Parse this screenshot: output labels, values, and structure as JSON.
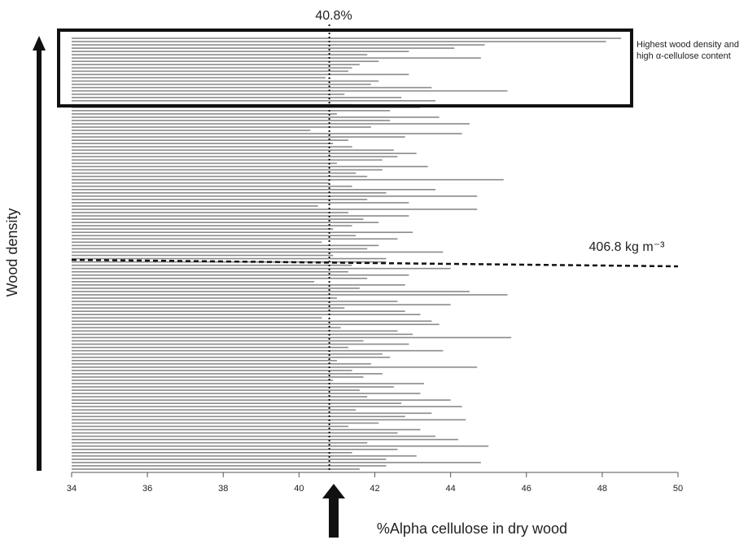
{
  "chart_data": {
    "type": "bar",
    "orientation": "horizontal",
    "y_label": "Wood density",
    "x_label": "%Alpha cellulose in dry wood",
    "color": "#8a8a8a",
    "xlim": [
      34,
      50
    ],
    "xticks": [
      34,
      36,
      38,
      40,
      42,
      44,
      46,
      48,
      50
    ],
    "mean_line": {
      "value": 40.8,
      "label": "40.8%"
    },
    "threshold_label": "406.8 kg m⁻³",
    "box_label": "Highest wood density and high α-cellulose content",
    "values": [
      48.5,
      48.1,
      44.9,
      44.1,
      42.9,
      41.8,
      44.8,
      42.1,
      41.6,
      41.4,
      41.3,
      42.9,
      40.7,
      42.1,
      41.9,
      43.5,
      45.5,
      41.2,
      42.7,
      43.6,
      41.4,
      43.2,
      42.4,
      41.0,
      43.7,
      42.4,
      44.5,
      41.9,
      40.3,
      44.3,
      42.8,
      41.3,
      40.9,
      41.4,
      42.5,
      43.1,
      42.6,
      42.2,
      41.0,
      43.4,
      42.2,
      41.5,
      41.8,
      45.4,
      40.8,
      41.4,
      43.6,
      42.3,
      44.7,
      41.8,
      42.9,
      40.5,
      44.7,
      41.3,
      42.9,
      41.7,
      42.1,
      41.4,
      40.9,
      43.0,
      41.5,
      42.6,
      40.6,
      42.1,
      41.8,
      43.8,
      40.9,
      42.3,
      42.3,
      41.4,
      44.0,
      41.3,
      42.9,
      41.8,
      40.4,
      42.8,
      41.6,
      44.5,
      45.5,
      41.0,
      42.6,
      44.0,
      41.2,
      42.8,
      43.2,
      40.6,
      43.5,
      43.7,
      41.1,
      42.6,
      43.0,
      45.6,
      41.7,
      42.9,
      41.3,
      43.8,
      42.2,
      42.4,
      41.0,
      41.9,
      44.7,
      41.4,
      42.2,
      41.7,
      40.9,
      43.3,
      42.5,
      41.6,
      43.2,
      41.8,
      44.0,
      42.7,
      44.3,
      41.5,
      43.5,
      42.8,
      44.4,
      42.1,
      41.3,
      43.2,
      42.6,
      43.6,
      44.2,
      41.8,
      45.0,
      42.6,
      41.4,
      43.1,
      42.3,
      44.8,
      42.3,
      41.6
    ]
  }
}
